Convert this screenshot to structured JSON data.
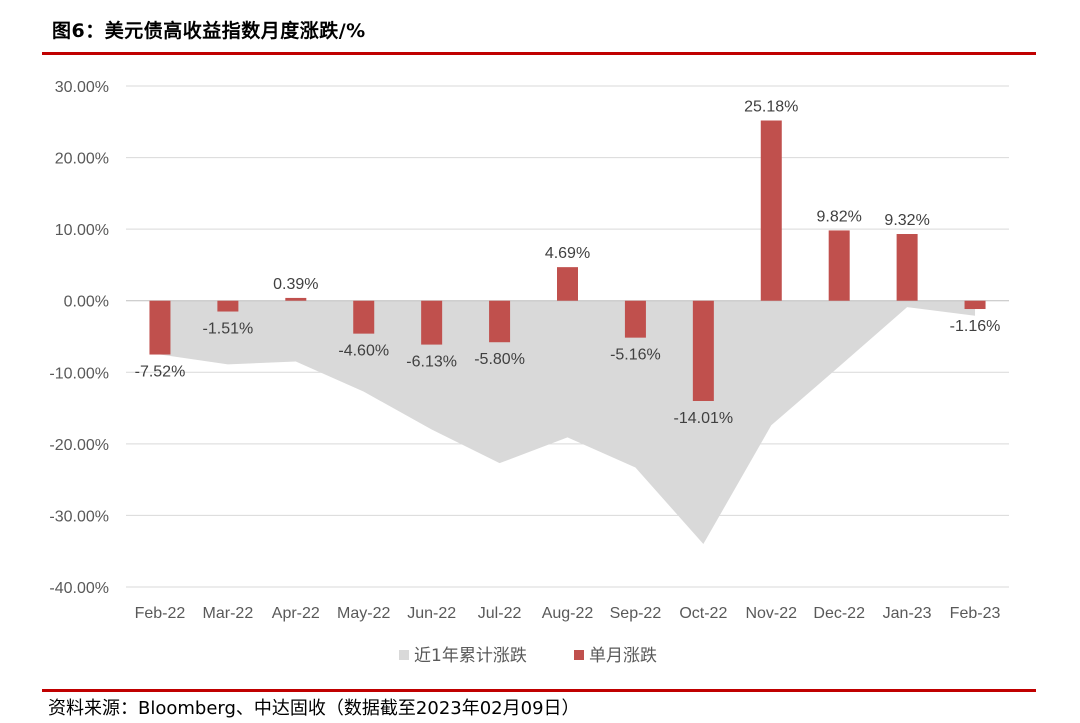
{
  "figure_title": "图6：美元债高收益指数月度涨跌/%",
  "source_note": "资料来源：Bloomberg、中达固收（数据截至2023年02月09日）",
  "colors": {
    "bar": "#c0504d",
    "area": "#d9d9d9",
    "rule": "#c00000",
    "grid": "#d9d9d9"
  },
  "chart_data": {
    "type": "bar",
    "categories": [
      "Feb-22",
      "Mar-22",
      "Apr-22",
      "May-22",
      "Jun-22",
      "Jul-22",
      "Aug-22",
      "Sep-22",
      "Oct-22",
      "Nov-22",
      "Dec-22",
      "Jan-23",
      "Feb-23"
    ],
    "series": [
      {
        "name": "近1年累计涨跌",
        "type": "area",
        "values": [
          -7.52,
          -8.9,
          -8.5,
          -12.7,
          -18.0,
          -22.7,
          -19.1,
          -23.3,
          -34.0,
          -17.4,
          -9.2,
          -0.9,
          -2.1
        ]
      },
      {
        "name": "单月涨跌",
        "type": "bar",
        "values": [
          -7.52,
          -1.51,
          0.39,
          -4.6,
          -6.13,
          -5.8,
          4.69,
          -5.16,
          -14.01,
          25.18,
          9.82,
          9.32,
          -1.16
        ],
        "labels": [
          "-7.52%",
          "-1.51%",
          "0.39%",
          "-4.60%",
          "-6.13%",
          "-5.80%",
          "4.69%",
          "-5.16%",
          "-14.01%",
          "25.18%",
          "9.82%",
          "9.32%",
          "-1.16%"
        ]
      }
    ],
    "yticks": [
      30,
      20,
      10,
      0,
      -10,
      -20,
      -30,
      -40
    ],
    "ytick_labels": [
      "30.00%",
      "20.00%",
      "10.00%",
      "0.00%",
      "-10.00%",
      "-20.00%",
      "-30.00%",
      "-40.00%"
    ],
    "ylim": [
      -40,
      30
    ],
    "grid": true,
    "legend_position": "bottom"
  }
}
